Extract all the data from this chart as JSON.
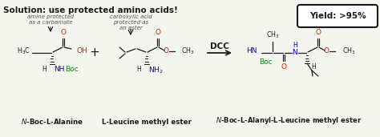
{
  "title": "Solution: use protected amino acids!",
  "bg_color": "#f5f5f0",
  "colors": {
    "black": "#1a1a1a",
    "red": "#cc2200",
    "blue": "#0000cc",
    "green": "#008800",
    "gray": "#555555"
  },
  "ann1": "amine protected\nas a carbamate",
  "ann2": "carboxylic acid\nprotected as\nan ester",
  "yield_text": "Yield: >95%",
  "dcc": "DCC",
  "name1": "N-Boc-L-Alanine",
  "name2": "L-Leucine methyl ester",
  "name3": "N-Boc-L-Alanyl-L-Leucine methyl ester"
}
